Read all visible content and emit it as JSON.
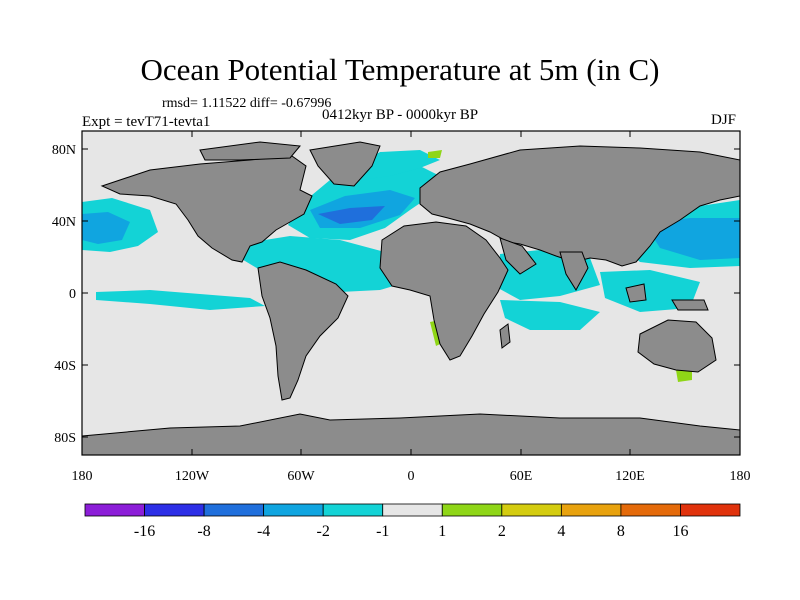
{
  "figure": {
    "title": "Ocean Potential Temperature at 5m (in C)",
    "stats": "rmsd= 1.11522 diff= -0.67996",
    "period": "0412kyr BP - 0000kyr BP",
    "experiment": "Expt = tevT71-tevta1",
    "season": "DJF"
  },
  "axes": {
    "lon_ticks": [
      "180",
      "120W",
      "60W",
      "0",
      "60E",
      "120E",
      "180"
    ],
    "lat_ticks": [
      "80N",
      "40N",
      "0",
      "40S",
      "80S"
    ]
  },
  "chart_data": {
    "type": "heatmap",
    "title": "Ocean Potential Temperature at 5m (in C)",
    "variable": "ocean potential temperature difference at 5m",
    "units": "C",
    "xlabel": "",
    "ylabel": "",
    "xlim": [
      -180,
      180
    ],
    "ylim": [
      -90,
      90
    ],
    "x_ticks": [
      -180,
      -120,
      -60,
      0,
      60,
      120,
      180
    ],
    "y_ticks": [
      80,
      40,
      0,
      -40,
      -80
    ],
    "colorbar": {
      "levels": [
        "-16",
        "-8",
        "-4",
        "-2",
        "-1",
        "1",
        "2",
        "4",
        "8",
        "16"
      ],
      "colors": [
        "#8c1ed8",
        "#2d2fe6",
        "#1f6fdc",
        "#10a5e0",
        "#13d3d6",
        "#e6e6e6",
        "#8fd617",
        "#d4cc10",
        "#e8a20e",
        "#e46a0a",
        "#e0320c"
      ]
    },
    "land_color": "#8c8c8c"
  },
  "colors": {
    "land": "#8c8c8c",
    "ocean_neutral": "#e6e6e6",
    "cyan": "#13d3d6",
    "sky": "#10a5e0",
    "blue": "#1f6fdc",
    "green": "#8fd617"
  }
}
